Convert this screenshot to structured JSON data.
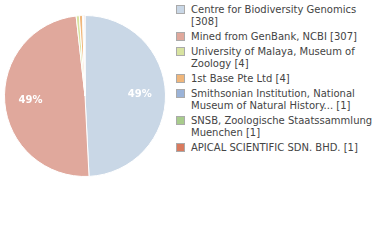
{
  "chart_data": {
    "type": "pie",
    "categories": [
      "Centre for Biodiversity Genomics [308]",
      "Mined from GenBank, NCBI [307]",
      "University of Malaya, Museum of Zoology [4]",
      "1st Base Pte Ltd [4]",
      "Smithsonian Institution, National Museum of Natural History... [1]",
      "SNSB, Zoologische Staatssammlung Muenchen [1]",
      "APICAL SCIENTIFIC SDN. BHD. [1]"
    ],
    "values": [
      49.2,
      49.04,
      0.64,
      0.64,
      0.16,
      0.16,
      0.16
    ],
    "colors": [
      "#c9d7e6",
      "#e0a89c",
      "#d8e3a0",
      "#f0b67a",
      "#9bb3d8",
      "#a8cc8c",
      "#d97a5e"
    ],
    "data_labels": true,
    "value_labels": [
      "49%",
      "49%",
      null,
      null,
      null,
      null,
      null
    ],
    "legend": "right"
  }
}
